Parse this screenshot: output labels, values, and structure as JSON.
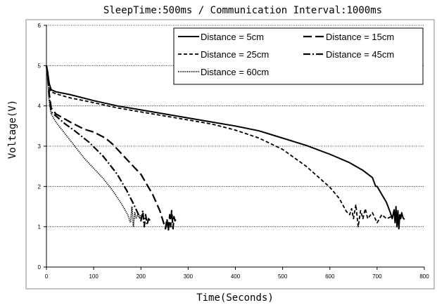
{
  "chart_data": {
    "type": "line",
    "title": "SleepTime:500ms / Communication Interval:1000ms",
    "xlabel": "Time(Seconds)",
    "ylabel": "Voltage(V)",
    "xlim": [
      0,
      800
    ],
    "ylim": [
      0,
      6
    ],
    "xticks": [
      "0",
      "100",
      "200",
      "300",
      "400",
      "500",
      "600",
      "700",
      "800"
    ],
    "yticks": [
      "0",
      "1",
      "2",
      "3",
      "4",
      "5",
      "6"
    ],
    "grid": "horizontal",
    "legend_position": "top-right",
    "series": [
      {
        "name": "Distance = 5cm",
        "dash": "solid",
        "x": [
          0,
          3,
          6,
          10,
          20,
          50,
          100,
          150,
          200,
          250,
          300,
          350,
          400,
          450,
          500,
          550,
          600,
          640,
          670,
          690,
          697,
          700,
          710,
          720,
          728,
          732,
          736,
          738,
          740,
          742,
          744,
          746,
          748,
          750,
          752,
          755,
          758
        ],
        "y": [
          5.0,
          4.8,
          4.55,
          4.4,
          4.35,
          4.28,
          4.13,
          4.0,
          3.9,
          3.8,
          3.7,
          3.6,
          3.5,
          3.38,
          3.2,
          3.02,
          2.8,
          2.6,
          2.4,
          2.22,
          2.0,
          2.0,
          1.8,
          1.6,
          1.35,
          1.2,
          1.42,
          1.1,
          1.5,
          1.0,
          1.4,
          0.95,
          1.3,
          1.2,
          1.35,
          1.22,
          1.18
        ]
      },
      {
        "name": "Distance = 15cm",
        "dash": "long-dash",
        "x": [
          0,
          3,
          6,
          10,
          20,
          50,
          80,
          100,
          125,
          140,
          160,
          180,
          200,
          225,
          240,
          248,
          252,
          255,
          258,
          261,
          263,
          265,
          268,
          270,
          272,
          275
        ],
        "y": [
          5.0,
          4.8,
          4.3,
          3.95,
          3.8,
          3.6,
          3.42,
          3.35,
          3.2,
          3.05,
          2.8,
          2.55,
          2.3,
          1.8,
          1.4,
          1.1,
          0.95,
          1.2,
          0.9,
          1.3,
          1.0,
          1.4,
          0.95,
          1.25,
          1.15,
          1.2
        ]
      },
      {
        "name": "Distance = 25cm",
        "dash": "short-dash",
        "x": [
          0,
          3,
          6,
          10,
          20,
          50,
          100,
          150,
          200,
          250,
          300,
          350,
          400,
          450,
          500,
          550,
          600,
          620,
          635,
          642,
          646,
          650,
          655,
          660,
          665,
          670,
          675,
          680,
          690,
          700,
          710,
          720,
          730
        ],
        "y": [
          5.0,
          4.7,
          4.45,
          4.35,
          4.3,
          4.2,
          4.08,
          3.95,
          3.85,
          3.75,
          3.65,
          3.55,
          3.4,
          3.2,
          2.92,
          2.5,
          1.98,
          1.7,
          1.38,
          1.3,
          1.45,
          1.2,
          1.55,
          1.0,
          1.4,
          1.2,
          1.45,
          1.2,
          1.35,
          1.1,
          1.3,
          1.2,
          1.25
        ]
      },
      {
        "name": "Distance = 45cm",
        "dash": "dash-dot",
        "x": [
          0,
          3,
          6,
          10,
          20,
          40,
          60,
          90,
          120,
          150,
          170,
          185,
          195,
          200,
          204,
          207,
          210,
          213,
          216,
          220
        ],
        "y": [
          5.0,
          4.7,
          4.2,
          3.85,
          3.75,
          3.55,
          3.38,
          3.1,
          2.75,
          2.3,
          1.9,
          1.55,
          1.3,
          1.15,
          1.4,
          1.0,
          1.3,
          1.05,
          1.2,
          1.15
        ]
      },
      {
        "name": "Distance = 60cm",
        "dash": "dotted",
        "x": [
          0,
          3,
          6,
          10,
          20,
          40,
          60,
          80,
          100,
          120,
          140,
          160,
          172,
          178,
          181,
          184,
          187,
          190,
          193,
          196,
          200
        ],
        "y": [
          5.0,
          4.6,
          4.1,
          3.8,
          3.6,
          3.3,
          3.0,
          2.7,
          2.45,
          2.2,
          1.9,
          1.55,
          1.3,
          1.1,
          1.5,
          1.0,
          1.35,
          1.2,
          1.3,
          1.25,
          1.3
        ]
      }
    ]
  }
}
